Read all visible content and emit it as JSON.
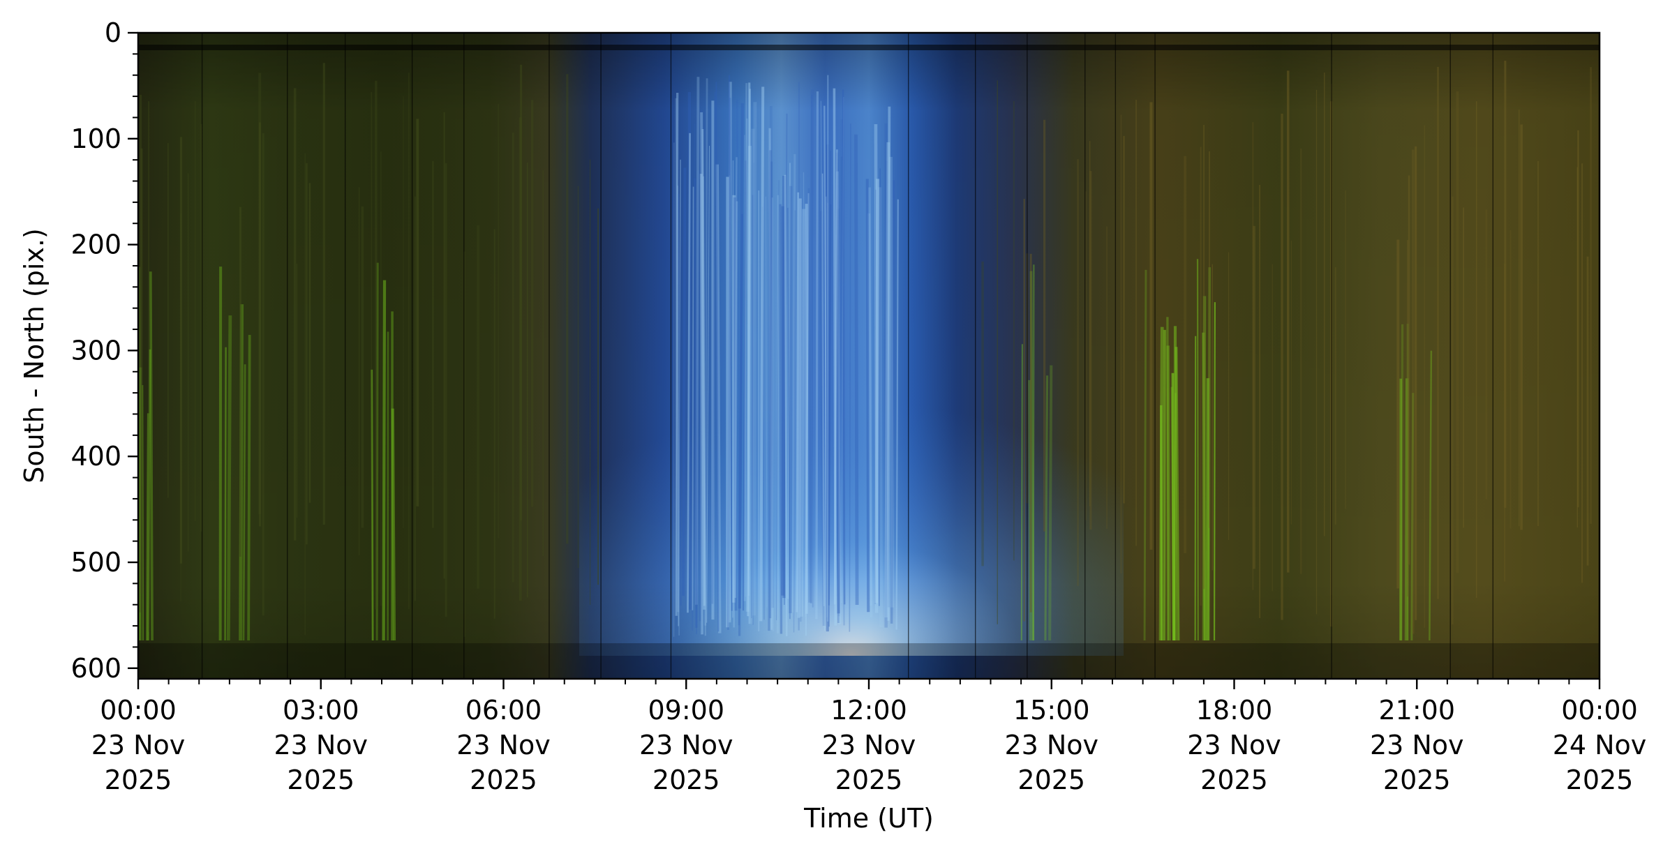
{
  "chart_data": {
    "type": "heatmap",
    "title": "",
    "xlabel": "Time (UT)",
    "ylabel": "South - North (pix.)",
    "xlim": [
      "2025-11-23 00:00",
      "2025-11-24 00:00"
    ],
    "ylim": [
      610,
      0
    ],
    "x_ticks": [
      {
        "time": "2025-11-23 00:00",
        "lines": [
          "00:00",
          "23 Nov",
          "2025"
        ]
      },
      {
        "time": "2025-11-23 03:00",
        "lines": [
          "03:00",
          "23 Nov",
          "2025"
        ]
      },
      {
        "time": "2025-11-23 06:00",
        "lines": [
          "06:00",
          "23 Nov",
          "2025"
        ]
      },
      {
        "time": "2025-11-23 09:00",
        "lines": [
          "09:00",
          "23 Nov",
          "2025"
        ]
      },
      {
        "time": "2025-11-23 12:00",
        "lines": [
          "12:00",
          "23 Nov",
          "2025"
        ]
      },
      {
        "time": "2025-11-23 15:00",
        "lines": [
          "15:00",
          "23 Nov",
          "2025"
        ]
      },
      {
        "time": "2025-11-23 18:00",
        "lines": [
          "18:00",
          "23 Nov",
          "2025"
        ]
      },
      {
        "time": "2025-11-23 21:00",
        "lines": [
          "21:00",
          "23 Nov",
          "2025"
        ]
      },
      {
        "time": "2025-11-24 00:00",
        "lines": [
          "00:00",
          "24 Nov",
          "2025"
        ]
      }
    ],
    "y_ticks": [
      {
        "value": 0,
        "label": "0"
      },
      {
        "value": 100,
        "label": "100"
      },
      {
        "value": 200,
        "label": "200"
      },
      {
        "value": 300,
        "label": "300"
      },
      {
        "value": 400,
        "label": "400"
      },
      {
        "value": 500,
        "label": "500"
      },
      {
        "value": 600,
        "label": "600"
      }
    ],
    "x_minor_step_minutes": 30,
    "y_minor_step": 20,
    "grid": false,
    "legend": "none",
    "colors": {
      "background_dark": "#1e2110",
      "olive": "#3a3f17",
      "yellow_olive": "#4e4a1c",
      "blue": "#2a58b0",
      "light_blue": "#8cc8f0",
      "green_aurora": "#7bd21e",
      "frame": "#000000"
    },
    "segment_boundaries_hours": [
      1.05,
      2.45,
      3.4,
      4.5,
      5.35,
      6.75,
      7.6,
      8.75,
      12.65,
      13.75,
      14.6,
      15.55,
      16.05,
      16.7,
      19.6,
      21.55,
      22.25
    ]
  }
}
